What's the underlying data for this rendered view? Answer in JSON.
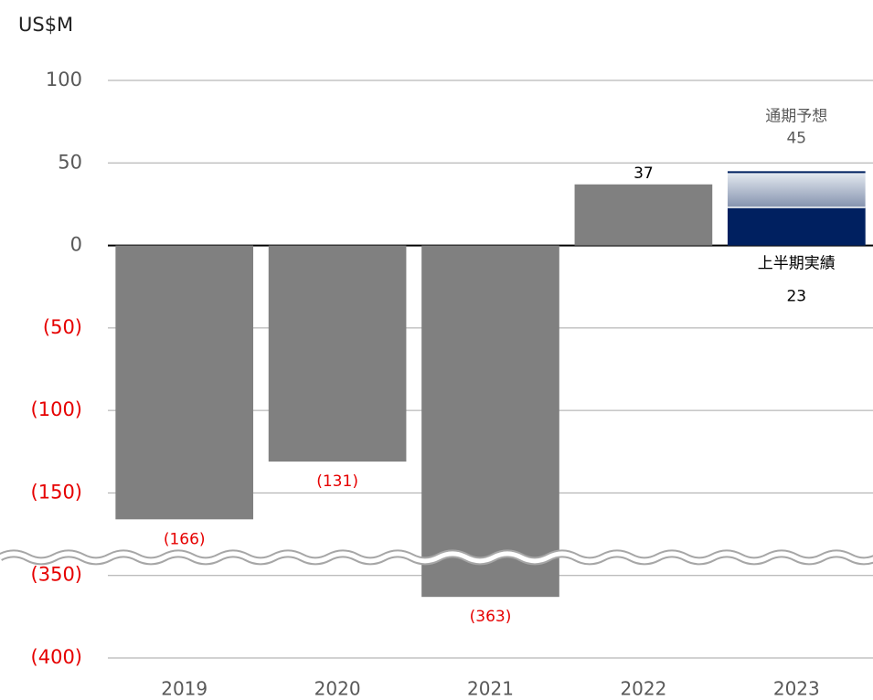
{
  "chart_data": {
    "type": "bar",
    "y_label": "US$M",
    "categories": [
      "2019",
      "2020",
      "2021",
      "2022",
      "2023"
    ],
    "values": [
      -166,
      -131,
      -363,
      37,
      null
    ],
    "value_labels": [
      "(166)",
      "(131)",
      "(363)",
      "37",
      null
    ],
    "color": "#808080",
    "forecast": {
      "label": "通期予想",
      "value": 45,
      "color_top": "#e8edf3",
      "color_bottom": "#1c3366"
    },
    "actual": {
      "label": "上半期実績",
      "value": 23,
      "color": "#002060"
    },
    "ylim": [
      -400,
      100
    ],
    "yticks": [
      100,
      50,
      0,
      {
        "value": -50,
        "label": "(50)"
      },
      {
        "value": -100,
        "label": "(100)"
      },
      {
        "value": -150,
        "label": "(150)"
      },
      {
        "value": -350,
        "label": "(350)"
      },
      {
        "value": -400,
        "label": "(400)"
      }
    ],
    "y_axis_break": true,
    "grid": true,
    "negative_color": "#e60000"
  }
}
